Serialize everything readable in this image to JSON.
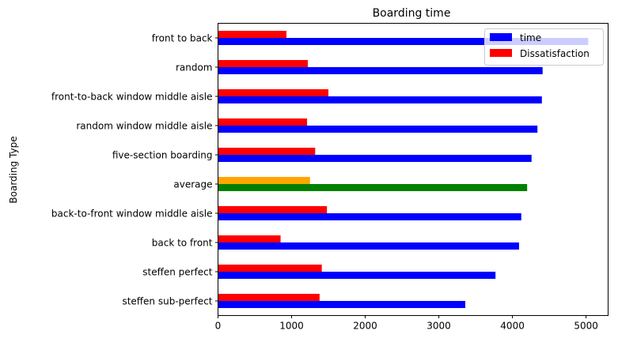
{
  "chart_data": {
    "type": "bar",
    "orientation": "horizontal",
    "title": "Boarding time",
    "xlabel": "",
    "ylabel": "Boarding Type",
    "xlim": [
      0,
      5300
    ],
    "xticks": [
      0,
      1000,
      2000,
      3000,
      4000,
      5000
    ],
    "grid": false,
    "legend_position": "top-right",
    "categories": [
      "front to back",
      "random",
      "front-to-back window middle aisle",
      "random window middle aisle",
      "five-section boarding",
      "average",
      "back-to-front window middle aisle",
      "back to front",
      "steffen perfect",
      "steffen sub-perfect"
    ],
    "series": [
      {
        "name": "time",
        "color": "#0000ff",
        "values": [
          5030,
          4410,
          4400,
          4340,
          4260,
          4200,
          4120,
          4090,
          3770,
          3360
        ],
        "highlight": {
          "index": 5,
          "color": "#008000"
        }
      },
      {
        "name": "Dissatisfaction",
        "color": "#ff0000",
        "values": [
          930,
          1220,
          1500,
          1210,
          1320,
          1250,
          1480,
          850,
          1410,
          1380
        ],
        "highlight": {
          "index": 5,
          "color": "#ffa500"
        }
      }
    ]
  }
}
